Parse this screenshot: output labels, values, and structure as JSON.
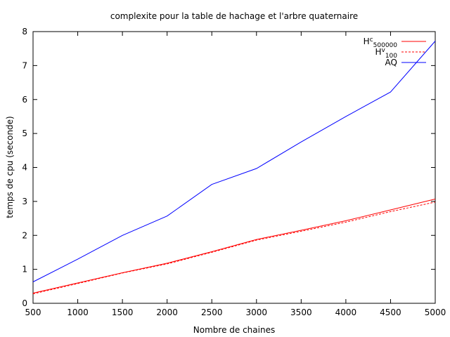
{
  "chart_data": {
    "type": "line",
    "title": "complexite pour la table de hachage et l'arbre quaternaire",
    "xlabel": "Nombre de chaines",
    "ylabel": "temps de cpu (seconde)",
    "xlim": [
      500,
      5000
    ],
    "ylim": [
      0,
      8
    ],
    "xticks": [
      500,
      1000,
      1500,
      2000,
      2500,
      3000,
      3500,
      4000,
      4500,
      5000
    ],
    "yticks": [
      0,
      1,
      2,
      3,
      4,
      5,
      6,
      7,
      8
    ],
    "grid": false,
    "legend_position": "top-right",
    "x": [
      500,
      1000,
      1500,
      2000,
      2500,
      3000,
      3500,
      4000,
      4500,
      5000
    ],
    "series": [
      {
        "name": "H",
        "name_sup": "c",
        "name_sub": "500000",
        "color": "#ff0000",
        "dash": "solid",
        "values": [
          0.3,
          0.6,
          0.9,
          1.18,
          1.52,
          1.88,
          2.15,
          2.43,
          2.75,
          3.07
        ]
      },
      {
        "name": "H",
        "name_sup": "v",
        "name_sub": "100",
        "color": "#ff0000",
        "dash": "dashed",
        "values": [
          0.28,
          0.58,
          0.89,
          1.16,
          1.5,
          1.86,
          2.12,
          2.39,
          2.7,
          2.98
        ]
      },
      {
        "name": "AQ",
        "name_sup": "",
        "name_sub": "",
        "color": "#0000ff",
        "dash": "solid",
        "values": [
          0.63,
          1.3,
          2.0,
          2.57,
          3.5,
          3.97,
          4.75,
          5.5,
          6.22,
          7.72
        ]
      }
    ]
  }
}
